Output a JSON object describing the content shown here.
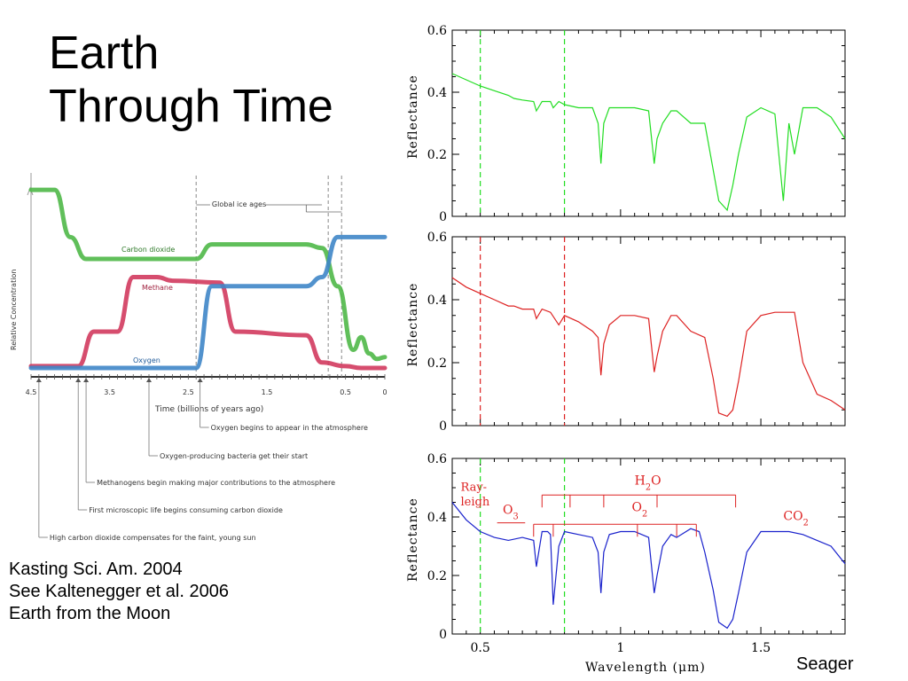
{
  "slide": {
    "title_lines": [
      "Earth",
      "Through Time"
    ],
    "credit_lines": [
      "Kasting Sci. Am. 2004",
      "See Kaltenegger et al. 2006",
      "Earth from the Moon"
    ],
    "attribution": "Seager"
  },
  "colors": {
    "carbon_dioxide": "#4fb848",
    "methane": "#d23a5e",
    "oxygen": "#3f86c8",
    "spectrum_1": "#22dd22",
    "spectrum_2": "#dd2222",
    "spectrum_3": "#1a22cc",
    "annotation_red": "#dd2222"
  },
  "chart_data": [
    {
      "type": "line",
      "ylabel": "Relative Concentration",
      "xlabel": "Time (billions of years ago)",
      "x_ticks": [
        "4.5",
        "3.5",
        "2.5",
        "1.5",
        "0.5",
        "0"
      ],
      "xlim": [
        4.5,
        0
      ],
      "bracket_label": "Global ice ages",
      "series": [
        {
          "name": "Carbon dioxide",
          "x": [
            4.5,
            4.2,
            4.0,
            3.8,
            2.4,
            2.2,
            2.0,
            1.0,
            0.8,
            0.6,
            0.4,
            0.3,
            0.2,
            0.1,
            0.0
          ],
          "y": [
            0.98,
            0.98,
            0.72,
            0.6,
            0.6,
            0.68,
            0.68,
            0.68,
            0.66,
            0.45,
            0.1,
            0.17,
            0.08,
            0.05,
            0.06
          ]
        },
        {
          "name": "Methane",
          "x": [
            4.5,
            3.9,
            3.7,
            3.4,
            3.2,
            2.9,
            2.7,
            2.1,
            1.9,
            1.0,
            0.8,
            0.5,
            0.3,
            0.0
          ],
          "y": [
            0.01,
            0.01,
            0.2,
            0.2,
            0.5,
            0.5,
            0.48,
            0.47,
            0.2,
            0.18,
            0.03,
            0.01,
            0.0,
            0.0
          ]
        },
        {
          "name": "Oxygen",
          "x": [
            4.5,
            2.4,
            2.2,
            1.9,
            1.0,
            0.8,
            0.6,
            0.4,
            0.0
          ],
          "y": [
            0.0,
            0.0,
            0.45,
            0.45,
            0.45,
            0.5,
            0.72,
            0.72,
            0.72
          ]
        }
      ],
      "annotations": [
        {
          "at": 2.35,
          "text": "Oxygen begins to appear in the atmosphere"
        },
        {
          "at": 3.0,
          "text": "Oxygen-producing bacteria get their start"
        },
        {
          "at": 3.8,
          "text": "Methanogens begin making major contributions to the atmosphere"
        },
        {
          "at": 3.9,
          "text": "First microscopic life begins consuming carbon dioxide"
        },
        {
          "at": 4.4,
          "text": "High carbon dioxide compensates for the faint, young sun"
        }
      ]
    },
    {
      "type": "line",
      "xlabel": "Wavelength (μm)",
      "ylabel": "Reflectance",
      "xlim": [
        0.4,
        1.8
      ],
      "ylim": [
        0,
        0.6
      ],
      "x_ticks": [
        "0.5",
        "1",
        "1.5"
      ],
      "y_ticks": [
        "0",
        "0.2",
        "0.4",
        "0.6"
      ],
      "vlines": [
        0.5,
        0.8
      ],
      "panels": [
        {
          "name": "panel-1",
          "series": [
            {
              "x": [
                0.4,
                0.45,
                0.5,
                0.55,
                0.6,
                0.62,
                0.65,
                0.69,
                0.7,
                0.72,
                0.75,
                0.76,
                0.78,
                0.8,
                0.85,
                0.9,
                0.92,
                0.93,
                0.94,
                0.96,
                1.0,
                1.05,
                1.1,
                1.12,
                1.13,
                1.15,
                1.18,
                1.2,
                1.25,
                1.3,
                1.33,
                1.35,
                1.38,
                1.4,
                1.42,
                1.45,
                1.5,
                1.55,
                1.58,
                1.6,
                1.62,
                1.65,
                1.7,
                1.75,
                1.8
              ],
              "y": [
                0.46,
                0.44,
                0.42,
                0.405,
                0.39,
                0.38,
                0.375,
                0.37,
                0.34,
                0.37,
                0.37,
                0.35,
                0.37,
                0.36,
                0.35,
                0.35,
                0.3,
                0.17,
                0.3,
                0.35,
                0.35,
                0.35,
                0.34,
                0.17,
                0.25,
                0.3,
                0.34,
                0.34,
                0.3,
                0.3,
                0.15,
                0.05,
                0.02,
                0.1,
                0.2,
                0.32,
                0.35,
                0.33,
                0.05,
                0.3,
                0.2,
                0.35,
                0.35,
                0.32,
                0.25
              ]
            }
          ]
        },
        {
          "name": "panel-2",
          "series": [
            {
              "x": [
                0.4,
                0.45,
                0.5,
                0.55,
                0.6,
                0.62,
                0.65,
                0.69,
                0.7,
                0.72,
                0.75,
                0.78,
                0.8,
                0.85,
                0.9,
                0.92,
                0.93,
                0.94,
                0.96,
                1.0,
                1.05,
                1.1,
                1.12,
                1.13,
                1.15,
                1.18,
                1.2,
                1.25,
                1.3,
                1.33,
                1.35,
                1.38,
                1.4,
                1.42,
                1.45,
                1.5,
                1.55,
                1.6,
                1.62,
                1.65,
                1.7,
                1.75,
                1.8
              ],
              "y": [
                0.47,
                0.44,
                0.42,
                0.4,
                0.38,
                0.38,
                0.37,
                0.37,
                0.34,
                0.37,
                0.36,
                0.32,
                0.35,
                0.33,
                0.3,
                0.28,
                0.16,
                0.26,
                0.32,
                0.35,
                0.35,
                0.34,
                0.17,
                0.22,
                0.3,
                0.35,
                0.35,
                0.3,
                0.28,
                0.15,
                0.04,
                0.03,
                0.05,
                0.14,
                0.3,
                0.35,
                0.36,
                0.36,
                0.36,
                0.2,
                0.1,
                0.08,
                0.05
              ]
            }
          ]
        },
        {
          "name": "panel-3",
          "series": [
            {
              "x": [
                0.4,
                0.45,
                0.5,
                0.55,
                0.6,
                0.65,
                0.69,
                0.7,
                0.72,
                0.74,
                0.75,
                0.76,
                0.78,
                0.8,
                0.85,
                0.9,
                0.92,
                0.93,
                0.94,
                0.96,
                1.0,
                1.05,
                1.1,
                1.12,
                1.13,
                1.15,
                1.18,
                1.2,
                1.25,
                1.28,
                1.3,
                1.33,
                1.35,
                1.38,
                1.4,
                1.42,
                1.45,
                1.5,
                1.55,
                1.6,
                1.65,
                1.7,
                1.75,
                1.8
              ],
              "y": [
                0.45,
                0.39,
                0.35,
                0.33,
                0.32,
                0.33,
                0.32,
                0.23,
                0.35,
                0.35,
                0.34,
                0.1,
                0.3,
                0.35,
                0.34,
                0.33,
                0.28,
                0.14,
                0.28,
                0.34,
                0.35,
                0.35,
                0.33,
                0.14,
                0.2,
                0.3,
                0.34,
                0.33,
                0.36,
                0.35,
                0.28,
                0.15,
                0.04,
                0.02,
                0.05,
                0.14,
                0.28,
                0.35,
                0.35,
                0.35,
                0.34,
                0.32,
                0.3,
                0.24
              ]
            }
          ],
          "annotations": [
            {
              "text": "Ray-",
              "x": 0.46,
              "y": 0.49
            },
            {
              "text": "leigh",
              "x": 0.46,
              "y": 0.44
            },
            {
              "text": "O3",
              "x": 0.6,
              "y": 0.42
            },
            {
              "text": "H2O",
              "x": 1.1,
              "y": 0.52
            },
            {
              "text": "O2",
              "x": 1.05,
              "y": 0.41
            },
            {
              "text": "CO2",
              "x": 1.6,
              "y": 0.39
            }
          ],
          "brackets": [
            {
              "label": "H2O",
              "from": 0.72,
              "to": 1.41,
              "y": 0.475,
              "ticks": [
                0.82,
                0.94,
                1.13
              ]
            },
            {
              "label": "O2",
              "from": 0.69,
              "to": 1.27,
              "y": 0.375,
              "ticks": [
                0.76,
                1.06,
                1.2
              ]
            },
            {
              "label": "O3",
              "from": 0.56,
              "to": 0.66,
              "y": 0.38,
              "ticks": []
            }
          ]
        }
      ]
    }
  ]
}
